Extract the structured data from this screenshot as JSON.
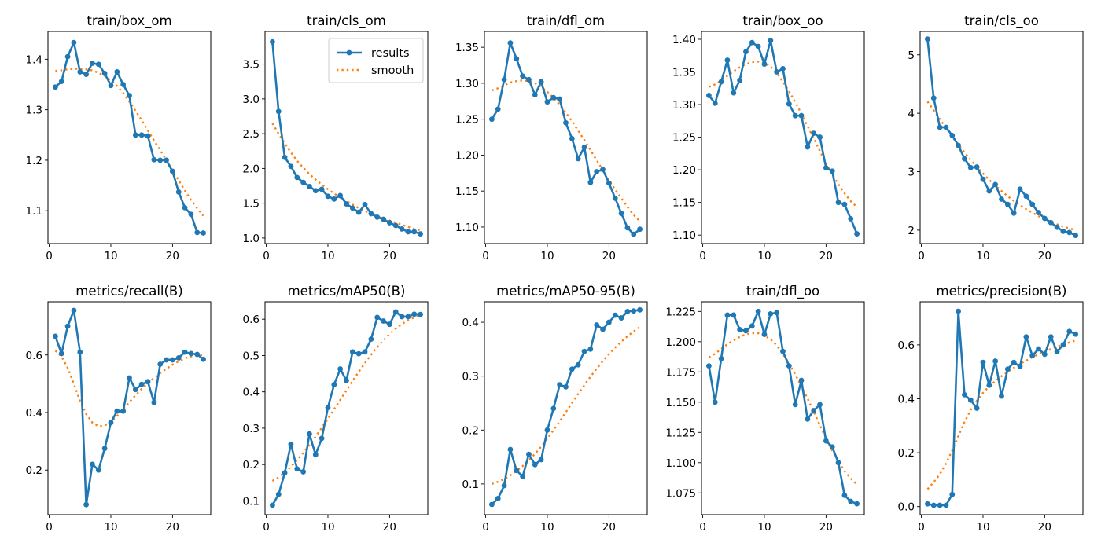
{
  "legend": {
    "results_label": "results",
    "smooth_label": "smooth"
  },
  "colors": {
    "results": "#1f77b4",
    "smooth": "#ff7f0e"
  },
  "chart_data": [
    {
      "type": "line",
      "title": "train/box_om",
      "x": [
        1,
        2,
        3,
        4,
        5,
        6,
        7,
        8,
        9,
        10,
        11,
        12,
        13,
        14,
        15,
        16,
        17,
        18,
        19,
        20,
        21,
        22,
        23,
        24,
        25
      ],
      "ylim": [
        1.035,
        1.455
      ],
      "xticks": [
        0,
        10,
        20
      ],
      "yticks": [
        1.1,
        1.2,
        1.3,
        1.4
      ],
      "ytick_labels": [
        "1.1",
        "1.2",
        "1.3",
        "1.4"
      ],
      "series": [
        {
          "name": "results",
          "values": [
            1.345,
            1.356,
            1.405,
            1.433,
            1.375,
            1.37,
            1.392,
            1.39,
            1.372,
            1.348,
            1.375,
            1.35,
            1.328,
            1.25,
            1.25,
            1.248,
            1.201,
            1.2,
            1.2,
            1.178,
            1.137,
            1.106,
            1.093,
            1.057,
            1.056
          ]
        },
        {
          "name": "smooth",
          "values": [
            1.377,
            1.378,
            1.38,
            1.381,
            1.381,
            1.38,
            1.378,
            1.373,
            1.367,
            1.358,
            1.347,
            1.333,
            1.316,
            1.298,
            1.279,
            1.259,
            1.239,
            1.22,
            1.2,
            1.18,
            1.16,
            1.14,
            1.121,
            1.105,
            1.09
          ]
        }
      ]
    },
    {
      "type": "line",
      "title": "train/cls_om",
      "x": [
        1,
        2,
        3,
        4,
        5,
        6,
        7,
        8,
        9,
        10,
        11,
        12,
        13,
        14,
        15,
        16,
        17,
        18,
        19,
        20,
        21,
        22,
        23,
        24,
        25
      ],
      "ylim": [
        0.92,
        3.97
      ],
      "xticks": [
        0,
        10,
        20
      ],
      "yticks": [
        1.0,
        1.5,
        2.0,
        2.5,
        3.0,
        3.5
      ],
      "ytick_labels": [
        "1.0",
        "1.5",
        "2.0",
        "2.5",
        "3.0",
        "3.5"
      ],
      "legend": "top-right",
      "series": [
        {
          "name": "results",
          "values": [
            3.82,
            2.82,
            2.16,
            2.03,
            1.87,
            1.8,
            1.74,
            1.68,
            1.7,
            1.6,
            1.56,
            1.61,
            1.49,
            1.43,
            1.37,
            1.48,
            1.35,
            1.3,
            1.27,
            1.22,
            1.18,
            1.13,
            1.09,
            1.09,
            1.06
          ]
        },
        {
          "name": "smooth",
          "values": [
            2.65,
            2.5,
            2.36,
            2.23,
            2.11,
            2.01,
            1.92,
            1.84,
            1.77,
            1.7,
            1.64,
            1.58,
            1.53,
            1.48,
            1.43,
            1.39,
            1.35,
            1.31,
            1.28,
            1.25,
            1.22,
            1.19,
            1.16,
            1.13,
            1.11
          ]
        }
      ]
    },
    {
      "type": "line",
      "title": "train/dfl_om",
      "x": [
        1,
        2,
        3,
        4,
        5,
        6,
        7,
        8,
        9,
        10,
        11,
        12,
        13,
        14,
        15,
        16,
        17,
        18,
        19,
        20,
        21,
        22,
        23,
        24,
        25
      ],
      "ylim": [
        1.077,
        1.372
      ],
      "xticks": [
        0,
        10,
        20
      ],
      "yticks": [
        1.1,
        1.15,
        1.2,
        1.25,
        1.3,
        1.35
      ],
      "ytick_labels": [
        "1.10",
        "1.15",
        "1.20",
        "1.25",
        "1.30",
        "1.35"
      ],
      "series": [
        {
          "name": "results",
          "values": [
            1.25,
            1.264,
            1.305,
            1.356,
            1.334,
            1.31,
            1.305,
            1.284,
            1.302,
            1.274,
            1.28,
            1.278,
            1.245,
            1.223,
            1.195,
            1.211,
            1.162,
            1.177,
            1.18,
            1.161,
            1.14,
            1.119,
            1.099,
            1.09,
            1.097
          ]
        },
        {
          "name": "smooth",
          "values": [
            1.29,
            1.293,
            1.297,
            1.301,
            1.303,
            1.304,
            1.303,
            1.3,
            1.295,
            1.288,
            1.28,
            1.27,
            1.259,
            1.247,
            1.234,
            1.221,
            1.207,
            1.193,
            1.179,
            1.165,
            1.152,
            1.14,
            1.128,
            1.117,
            1.108
          ]
        }
      ]
    },
    {
      "type": "line",
      "title": "train/box_oo",
      "x": [
        1,
        2,
        3,
        4,
        5,
        6,
        7,
        8,
        9,
        10,
        11,
        12,
        13,
        14,
        15,
        16,
        17,
        18,
        19,
        20,
        21,
        22,
        23,
        24,
        25
      ],
      "ylim": [
        1.087,
        1.412
      ],
      "xticks": [
        0,
        10,
        20
      ],
      "yticks": [
        1.1,
        1.15,
        1.2,
        1.25,
        1.3,
        1.35,
        1.4
      ],
      "ytick_labels": [
        "1.10",
        "1.15",
        "1.20",
        "1.25",
        "1.30",
        "1.35",
        "1.40"
      ],
      "series": [
        {
          "name": "results",
          "values": [
            1.314,
            1.302,
            1.335,
            1.368,
            1.318,
            1.337,
            1.381,
            1.395,
            1.389,
            1.362,
            1.398,
            1.35,
            1.355,
            1.301,
            1.283,
            1.283,
            1.235,
            1.256,
            1.25,
            1.203,
            1.198,
            1.15,
            1.147,
            1.125,
            1.102
          ]
        },
        {
          "name": "smooth",
          "values": [
            1.327,
            1.331,
            1.337,
            1.344,
            1.351,
            1.357,
            1.362,
            1.365,
            1.366,
            1.364,
            1.358,
            1.348,
            1.335,
            1.32,
            1.304,
            1.286,
            1.267,
            1.248,
            1.229,
            1.21,
            1.193,
            1.178,
            1.164,
            1.152,
            1.143
          ]
        }
      ]
    },
    {
      "type": "line",
      "title": "train/cls_oo",
      "x": [
        1,
        2,
        3,
        4,
        5,
        6,
        7,
        8,
        9,
        10,
        11,
        12,
        13,
        14,
        15,
        16,
        17,
        18,
        19,
        20,
        21,
        22,
        23,
        24,
        25
      ],
      "ylim": [
        1.77,
        5.4
      ],
      "xticks": [
        0,
        10,
        20
      ],
      "yticks": [
        2,
        3,
        4,
        5
      ],
      "ytick_labels": [
        "2",
        "3",
        "4",
        "5"
      ],
      "series": [
        {
          "name": "results",
          "values": [
            5.27,
            4.26,
            3.76,
            3.76,
            3.62,
            3.45,
            3.22,
            3.07,
            3.08,
            2.87,
            2.67,
            2.78,
            2.53,
            2.44,
            2.29,
            2.7,
            2.58,
            2.44,
            2.3,
            2.2,
            2.13,
            2.05,
            1.98,
            1.96,
            1.91
          ]
        },
        {
          "name": "smooth",
          "values": [
            4.2,
            4.05,
            3.9,
            3.75,
            3.6,
            3.46,
            3.33,
            3.2,
            3.08,
            2.97,
            2.86,
            2.76,
            2.67,
            2.58,
            2.5,
            2.43,
            2.36,
            2.3,
            2.24,
            2.19,
            2.14,
            2.1,
            2.06,
            2.03,
            2.0
          ]
        }
      ]
    },
    {
      "type": "line",
      "title": "metrics/recall(B)",
      "x": [
        1,
        2,
        3,
        4,
        5,
        6,
        7,
        8,
        9,
        10,
        11,
        12,
        13,
        14,
        15,
        16,
        17,
        18,
        19,
        20,
        21,
        22,
        23,
        24,
        25
      ],
      "ylim": [
        0.045,
        0.785
      ],
      "xticks": [
        0,
        10,
        20
      ],
      "yticks": [
        0.2,
        0.4,
        0.6
      ],
      "ytick_labels": [
        "0.2",
        "0.4",
        "0.6"
      ],
      "series": [
        {
          "name": "results",
          "values": [
            0.665,
            0.605,
            0.7,
            0.755,
            0.61,
            0.08,
            0.22,
            0.2,
            0.275,
            0.365,
            0.405,
            0.405,
            0.52,
            0.48,
            0.498,
            0.507,
            0.435,
            0.568,
            0.583,
            0.583,
            0.59,
            0.61,
            0.605,
            0.602,
            0.585
          ]
        },
        {
          "name": "smooth",
          "values": [
            0.615,
            0.595,
            0.555,
            0.5,
            0.44,
            0.395,
            0.365,
            0.352,
            0.355,
            0.368,
            0.388,
            0.412,
            0.436,
            0.46,
            0.482,
            0.502,
            0.52,
            0.537,
            0.552,
            0.566,
            0.578,
            0.588,
            0.595,
            0.599,
            0.6
          ]
        }
      ]
    },
    {
      "type": "line",
      "title": "metrics/mAP50(B)",
      "x": [
        1,
        2,
        3,
        4,
        5,
        6,
        7,
        8,
        9,
        10,
        11,
        12,
        13,
        14,
        15,
        16,
        17,
        18,
        19,
        20,
        21,
        22,
        23,
        24,
        25
      ],
      "ylim": [
        0.062,
        0.648
      ],
      "xticks": [
        0,
        10,
        20
      ],
      "yticks": [
        0.1,
        0.2,
        0.3,
        0.4,
        0.5,
        0.6
      ],
      "ytick_labels": [
        "0.1",
        "0.2",
        "0.3",
        "0.4",
        "0.5",
        "0.6"
      ],
      "series": [
        {
          "name": "results",
          "values": [
            0.088,
            0.118,
            0.177,
            0.256,
            0.188,
            0.18,
            0.284,
            0.227,
            0.272,
            0.357,
            0.42,
            0.463,
            0.431,
            0.51,
            0.505,
            0.51,
            0.545,
            0.605,
            0.595,
            0.586,
            0.62,
            0.607,
            0.607,
            0.614,
            0.613
          ]
        },
        {
          "name": "smooth",
          "values": [
            0.155,
            0.165,
            0.178,
            0.194,
            0.212,
            0.232,
            0.254,
            0.277,
            0.301,
            0.326,
            0.352,
            0.378,
            0.404,
            0.43,
            0.455,
            0.479,
            0.502,
            0.523,
            0.542,
            0.559,
            0.574,
            0.587,
            0.597,
            0.605,
            0.611
          ]
        }
      ]
    },
    {
      "type": "line",
      "title": "metrics/mAP50-95(B)",
      "x": [
        1,
        2,
        3,
        4,
        5,
        6,
        7,
        8,
        9,
        10,
        11,
        12,
        13,
        14,
        15,
        16,
        17,
        18,
        19,
        20,
        21,
        22,
        23,
        24,
        25
      ],
      "ylim": [
        0.043,
        0.438
      ],
      "xticks": [
        0,
        10,
        20
      ],
      "yticks": [
        0.1,
        0.2,
        0.3,
        0.4
      ],
      "ytick_labels": [
        "0.1",
        "0.2",
        "0.3",
        "0.4"
      ],
      "series": [
        {
          "name": "results",
          "values": [
            0.062,
            0.073,
            0.097,
            0.164,
            0.125,
            0.114,
            0.155,
            0.136,
            0.145,
            0.2,
            0.24,
            0.284,
            0.28,
            0.313,
            0.321,
            0.346,
            0.35,
            0.395,
            0.387,
            0.4,
            0.413,
            0.408,
            0.42,
            0.421,
            0.423
          ]
        },
        {
          "name": "smooth",
          "values": [
            0.1,
            0.104,
            0.109,
            0.116,
            0.124,
            0.133,
            0.144,
            0.156,
            0.169,
            0.184,
            0.2,
            0.216,
            0.233,
            0.25,
            0.267,
            0.283,
            0.299,
            0.314,
            0.328,
            0.341,
            0.353,
            0.364,
            0.374,
            0.383,
            0.391
          ]
        }
      ]
    },
    {
      "type": "line",
      "title": "train/dfl_oo",
      "x": [
        1,
        2,
        3,
        4,
        5,
        6,
        7,
        8,
        9,
        10,
        11,
        12,
        13,
        14,
        15,
        16,
        17,
        18,
        19,
        20,
        21,
        22,
        23,
        24,
        25
      ],
      "ylim": [
        1.057,
        1.233
      ],
      "xticks": [
        0,
        10,
        20
      ],
      "yticks": [
        1.075,
        1.1,
        1.125,
        1.15,
        1.175,
        1.2,
        1.225
      ],
      "ytick_labels": [
        "1.075",
        "1.100",
        "1.125",
        "1.150",
        "1.175",
        "1.200",
        "1.225"
      ],
      "series": [
        {
          "name": "results",
          "values": [
            1.18,
            1.15,
            1.186,
            1.222,
            1.222,
            1.21,
            1.209,
            1.213,
            1.225,
            1.206,
            1.223,
            1.224,
            1.192,
            1.18,
            1.148,
            1.168,
            1.136,
            1.143,
            1.148,
            1.118,
            1.113,
            1.1,
            1.073,
            1.068,
            1.066
          ]
        },
        {
          "name": "smooth",
          "values": [
            1.187,
            1.19,
            1.194,
            1.198,
            1.201,
            1.204,
            1.206,
            1.207,
            1.207,
            1.205,
            1.202,
            1.197,
            1.19,
            1.182,
            1.173,
            1.163,
            1.153,
            1.142,
            1.131,
            1.12,
            1.11,
            1.101,
            1.093,
            1.087,
            1.082
          ]
        }
      ]
    },
    {
      "type": "line",
      "title": "metrics/precision(B)",
      "x": [
        1,
        2,
        3,
        4,
        5,
        6,
        7,
        8,
        9,
        10,
        11,
        12,
        13,
        14,
        15,
        16,
        17,
        18,
        19,
        20,
        21,
        22,
        23,
        24,
        25
      ],
      "ylim": [
        -0.03,
        0.76
      ],
      "xticks": [
        0,
        10,
        20
      ],
      "yticks": [
        0.0,
        0.2,
        0.4,
        0.6
      ],
      "ytick_labels": [
        "0.0",
        "0.2",
        "0.4",
        "0.6"
      ],
      "series": [
        {
          "name": "results",
          "values": [
            0.01,
            0.005,
            0.005,
            0.005,
            0.045,
            0.725,
            0.415,
            0.395,
            0.365,
            0.535,
            0.45,
            0.54,
            0.41,
            0.51,
            0.535,
            0.52,
            0.63,
            0.56,
            0.585,
            0.565,
            0.63,
            0.575,
            0.6,
            0.65,
            0.64
          ]
        },
        {
          "name": "smooth",
          "values": [
            0.065,
            0.09,
            0.12,
            0.16,
            0.208,
            0.262,
            0.314,
            0.358,
            0.393,
            0.422,
            0.446,
            0.466,
            0.484,
            0.5,
            0.515,
            0.529,
            0.542,
            0.554,
            0.565,
            0.575,
            0.584,
            0.593,
            0.601,
            0.609,
            0.616
          ]
        }
      ]
    }
  ]
}
